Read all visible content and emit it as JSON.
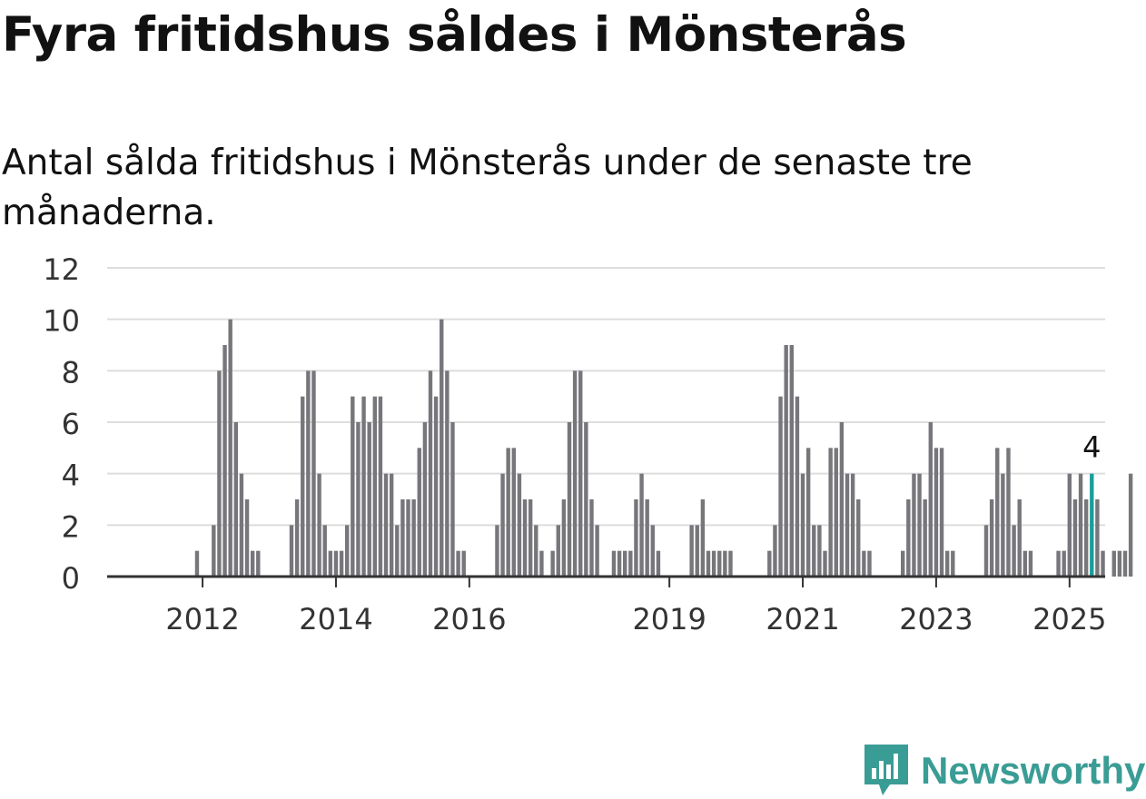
{
  "title": "Fyra fritidshus såldes i Mönsterås",
  "subtitle": "Antal sålda fritidshus i Mönsterås under de senaste tre månaderna.",
  "brand": {
    "name": "Newsworthy",
    "color": "#3a9d95"
  },
  "colors": {
    "bar": "#77767b",
    "highlight": "#1a9e99",
    "grid": "#dddddd",
    "axis": "#333333"
  },
  "chart_data": {
    "type": "bar",
    "ylim": [
      0,
      12
    ],
    "yticks": [
      0,
      2,
      4,
      6,
      8,
      10,
      12
    ],
    "grid": true,
    "xtick_labels": [
      {
        "label": "2012",
        "index": 9
      },
      {
        "label": "2014",
        "index": 33
      },
      {
        "label": "2016",
        "index": 57
      },
      {
        "label": "2019",
        "index": 93
      },
      {
        "label": "2021",
        "index": 117
      },
      {
        "label": "2023",
        "index": 141
      },
      {
        "label": "2025",
        "index": 165
      }
    ],
    "values": [
      0,
      0,
      0,
      0,
      0,
      0,
      0,
      0,
      1,
      0,
      0,
      2,
      8,
      9,
      10,
      6,
      4,
      3,
      1,
      1,
      0,
      0,
      0,
      0,
      0,
      2,
      3,
      7,
      8,
      8,
      4,
      2,
      1,
      1,
      1,
      2,
      7,
      6,
      7,
      6,
      7,
      7,
      4,
      4,
      2,
      3,
      3,
      3,
      5,
      6,
      8,
      7,
      10,
      8,
      6,
      1,
      1,
      0,
      0,
      0,
      0,
      0,
      2,
      4,
      5,
      5,
      4,
      3,
      3,
      2,
      1,
      0,
      1,
      2,
      3,
      6,
      8,
      8,
      6,
      3,
      2,
      0,
      0,
      1,
      1,
      1,
      1,
      3,
      4,
      3,
      2,
      1,
      0,
      0,
      0,
      0,
      0,
      2,
      2,
      3,
      1,
      1,
      1,
      1,
      1,
      0,
      0,
      0,
      0,
      0,
      0,
      1,
      2,
      7,
      9,
      9,
      7,
      4,
      5,
      2,
      2,
      1,
      5,
      5,
      6,
      4,
      4,
      3,
      1,
      1,
      0,
      0,
      0,
      0,
      0,
      1,
      3,
      4,
      4,
      3,
      6,
      5,
      5,
      1,
      1,
      0,
      0,
      0,
      0,
      0,
      2,
      3,
      5,
      4,
      5,
      2,
      3,
      1,
      1,
      0,
      0,
      0,
      0,
      1,
      1,
      4,
      3,
      4,
      3,
      4,
      3,
      1,
      0,
      1,
      1,
      1,
      4
    ],
    "highlight": {
      "index": 169,
      "value": 4,
      "label": "4"
    }
  }
}
